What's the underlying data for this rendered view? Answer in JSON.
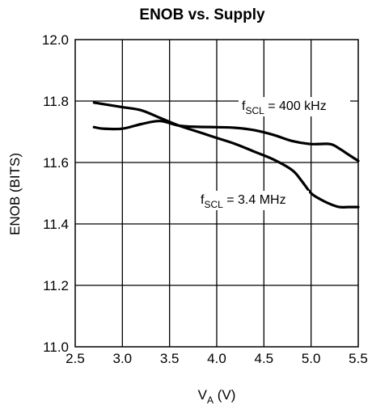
{
  "chart_data": {
    "type": "line",
    "title": "ENOB vs. Supply",
    "xlabel": {
      "main": "V",
      "sub": "A",
      "rest": " (V)"
    },
    "ylabel": "ENOB (BITS)",
    "xlim": [
      2.5,
      5.5
    ],
    "ylim": [
      11.0,
      12.0
    ],
    "xticks": [
      2.5,
      3.0,
      3.5,
      4.0,
      4.5,
      5.0,
      5.5
    ],
    "yticks": [
      11.0,
      11.2,
      11.4,
      11.6,
      11.8,
      12.0
    ],
    "xtick_labels": [
      "2.5",
      "3.0",
      "3.5",
      "4.0",
      "4.5",
      "5.0",
      "5.5"
    ],
    "ytick_labels": [
      "11.0",
      "11.2",
      "11.4",
      "11.6",
      "11.8",
      "12.0"
    ],
    "grid": true,
    "series": [
      {
        "name": "fSCL = 400 kHz",
        "x": [
          2.7,
          2.8,
          3.0,
          3.2,
          3.4,
          3.6,
          3.8,
          4.0,
          4.2,
          4.4,
          4.6,
          4.8,
          5.0,
          5.2,
          5.3,
          5.4,
          5.5
        ],
        "y": [
          11.715,
          11.71,
          11.71,
          11.725,
          11.735,
          11.72,
          11.716,
          11.715,
          11.713,
          11.705,
          11.69,
          11.67,
          11.66,
          11.66,
          11.645,
          11.625,
          11.605
        ]
      },
      {
        "name": "fSCL = 3.4 MHz",
        "x": [
          2.7,
          2.8,
          3.0,
          3.2,
          3.4,
          3.6,
          3.8,
          4.0,
          4.2,
          4.4,
          4.6,
          4.8,
          4.9,
          5.0,
          5.1,
          5.2,
          5.3,
          5.4,
          5.5
        ],
        "y": [
          11.795,
          11.79,
          11.78,
          11.77,
          11.745,
          11.72,
          11.7,
          11.68,
          11.66,
          11.635,
          11.61,
          11.575,
          11.54,
          11.5,
          11.48,
          11.465,
          11.455,
          11.455,
          11.455
        ]
      }
    ],
    "annotations": [
      {
        "main": "f",
        "sub": "SCL",
        "rest": " = 400 kHz"
      },
      {
        "main": "f",
        "sub": "SCL",
        "rest": " = 3.4 MHz"
      }
    ],
    "colors": {
      "line": "#000000",
      "grid": "#000000",
      "background": "#ffffff"
    }
  }
}
